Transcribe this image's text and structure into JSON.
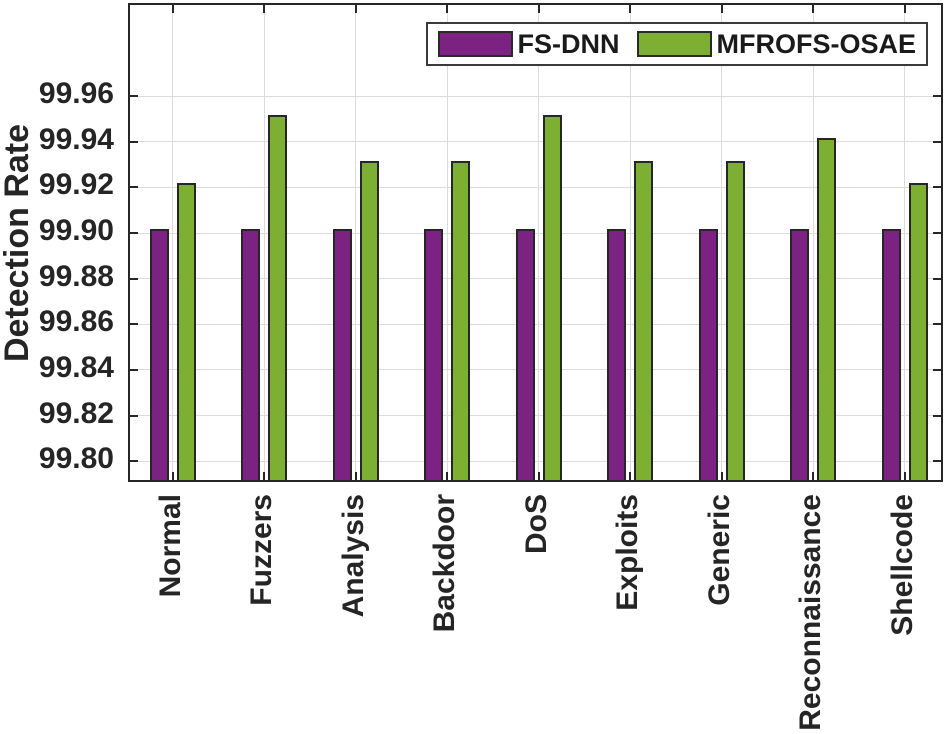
{
  "chart_data": {
    "type": "bar",
    "title": "",
    "xlabel": "",
    "ylabel": "Detection Rate",
    "categories": [
      "Normal",
      "Fuzzers",
      "Analysis",
      "Backdoor",
      "DoS",
      "Exploits",
      "Generic",
      "Reconnaissance",
      "Shellcode"
    ],
    "series": [
      {
        "name": "FS-DNN",
        "color": "#7B2282",
        "values": [
          99.9,
          99.9,
          99.9,
          99.9,
          99.9,
          99.9,
          99.9,
          99.9,
          99.9
        ]
      },
      {
        "name": "MFROFS-OSAE",
        "color": "#7CAF32",
        "values": [
          99.92,
          99.95,
          99.93,
          99.93,
          99.95,
          99.93,
          99.93,
          99.94,
          99.92
        ]
      }
    ],
    "ylim": [
      99.79,
      100.0
    ],
    "ytick_labels": [
      "99.80",
      "99.82",
      "99.84",
      "99.86",
      "99.88",
      "99.90",
      "99.92",
      "99.94",
      "99.96"
    ],
    "grid": true,
    "legend_position": "top-right",
    "bar_edge_color": "#262626",
    "grid_color": "#dcdcdc",
    "axis_color": "#262626"
  }
}
